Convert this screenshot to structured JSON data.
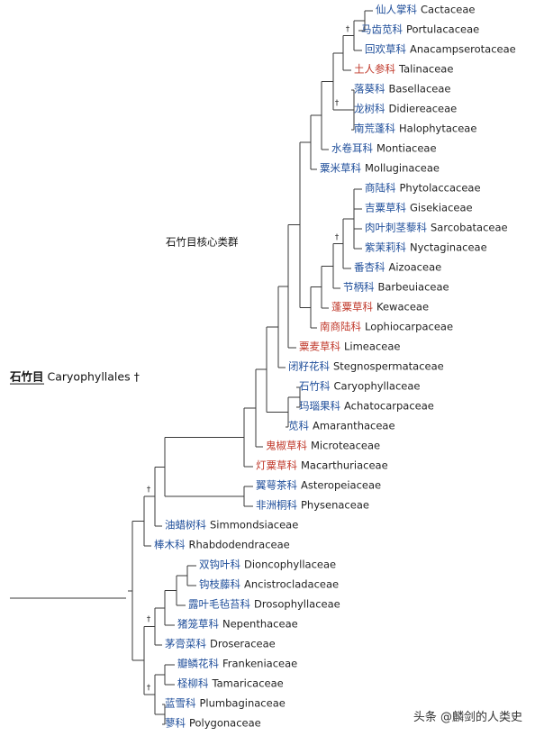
{
  "root": {
    "cn": "石竹目",
    "sci": "Caryophyllales",
    "dagger": "†"
  },
  "core_group": {
    "label": "石竹目核心类群"
  },
  "dagger_symbol": "†",
  "colors": {
    "normal_name": "#1f4e9a",
    "special_name": "#c0392b",
    "line": "#3a3a3a"
  },
  "taxa": [
    {
      "id": "cactaceae",
      "cn": "仙人掌科",
      "sci": "Cactaceae",
      "highlight": false
    },
    {
      "id": "portulacaceae",
      "cn": "马齿苋科",
      "sci": "Portulacaceae",
      "highlight": false
    },
    {
      "id": "anacampserotaceae",
      "cn": "回欢草科",
      "sci": "Anacampserotaceae",
      "highlight": false
    },
    {
      "id": "talinaceae",
      "cn": "土人参科",
      "sci": "Talinaceae",
      "highlight": true
    },
    {
      "id": "basellaceae",
      "cn": "落葵科",
      "sci": "Basellaceae",
      "highlight": false
    },
    {
      "id": "didiereaceae",
      "cn": "龙树科",
      "sci": "Didiereaceae",
      "highlight": false
    },
    {
      "id": "halophytaceae",
      "cn": "南荒蓬科",
      "sci": "Halophytaceae",
      "highlight": false
    },
    {
      "id": "montiaceae",
      "cn": "水卷耳科",
      "sci": "Montiaceae",
      "highlight": false
    },
    {
      "id": "molluginaceae",
      "cn": "粟米草科",
      "sci": "Molluginaceae",
      "highlight": false
    },
    {
      "id": "phytolaccaceae",
      "cn": "商陆科",
      "sci": "Phytolaccaceae",
      "highlight": false
    },
    {
      "id": "gisekiaceae",
      "cn": "吉粟草科",
      "sci": "Gisekiaceae",
      "highlight": false
    },
    {
      "id": "sarcobataceae",
      "cn": "肉叶刺茎藜科",
      "sci": "Sarcobataceae",
      "highlight": false
    },
    {
      "id": "nyctaginaceae",
      "cn": "紫茉莉科",
      "sci": "Nyctaginaceae",
      "highlight": false
    },
    {
      "id": "aizoaceae",
      "cn": "番杏科",
      "sci": "Aizoaceae",
      "highlight": false
    },
    {
      "id": "barbeuiaceae",
      "cn": "节柄科",
      "sci": "Barbeuiaceae",
      "highlight": false
    },
    {
      "id": "kewaceae",
      "cn": "蓬粟草科",
      "sci": "Kewaceae",
      "highlight": true
    },
    {
      "id": "lophiocarpaceae",
      "cn": "南商陆科",
      "sci": "Lophiocarpaceae",
      "highlight": true
    },
    {
      "id": "limeaceae",
      "cn": "粟麦草科",
      "sci": "Limeaceae",
      "highlight": true
    },
    {
      "id": "stegnospermataceae",
      "cn": "闭籽花科",
      "sci": "Stegnospermataceae",
      "highlight": false
    },
    {
      "id": "caryophyllaceae",
      "cn": "石竹科",
      "sci": "Caryophyllaceae",
      "highlight": false
    },
    {
      "id": "achatocarpaceae",
      "cn": "玛瑙果科",
      "sci": "Achatocarpaceae",
      "highlight": false
    },
    {
      "id": "amaranthaceae",
      "cn": "苋科",
      "sci": "Amaranthaceae",
      "highlight": false
    },
    {
      "id": "microteaceae",
      "cn": "鬼椒草科",
      "sci": "Microteaceae",
      "highlight": true
    },
    {
      "id": "macarthuriaceae",
      "cn": "灯粟草科",
      "sci": "Macarthuriaceae",
      "highlight": true
    },
    {
      "id": "asteropeiaceae",
      "cn": "翼萼茶科",
      "sci": "Asteropeiaceae",
      "highlight": false
    },
    {
      "id": "physenaceae",
      "cn": "非洲桐科",
      "sci": "Physenaceae",
      "highlight": false
    },
    {
      "id": "simmondsiaceae",
      "cn": "油蜡树科",
      "sci": "Simmondsiaceae",
      "highlight": false
    },
    {
      "id": "rhabdodendraceae",
      "cn": "棒木科",
      "sci": "Rhabdodendraceae",
      "highlight": false
    },
    {
      "id": "dioncophyllaceae",
      "cn": "双钩叶科",
      "sci": "Dioncophyllaceae",
      "highlight": false
    },
    {
      "id": "ancistrocladaceae",
      "cn": "钩枝藤科",
      "sci": "Ancistrocladaceae",
      "highlight": false
    },
    {
      "id": "drosophyllaceae",
      "cn": "露叶毛毡苔科",
      "sci": "Drosophyllaceae",
      "highlight": false
    },
    {
      "id": "nepenthaceae",
      "cn": "猪笼草科",
      "sci": "Nepenthaceae",
      "highlight": false
    },
    {
      "id": "droseraceae",
      "cn": "茅膏菜科",
      "sci": "Droseraceae",
      "highlight": false
    },
    {
      "id": "frankeniaceae",
      "cn": "瓣鳞花科",
      "sci": "Frankeniaceae",
      "highlight": false
    },
    {
      "id": "tamaricaceae",
      "cn": "柽柳科",
      "sci": "Tamaricaceae",
      "highlight": false
    },
    {
      "id": "plumbaginaceae",
      "cn": "蓝雪科",
      "sci": "Plumbaginaceae",
      "highlight": false
    },
    {
      "id": "polygonaceae",
      "cn": "蓼科",
      "sci": "Polygonaceae",
      "highlight": false
    }
  ],
  "watermark": "头条 @麟剑的人类史"
}
